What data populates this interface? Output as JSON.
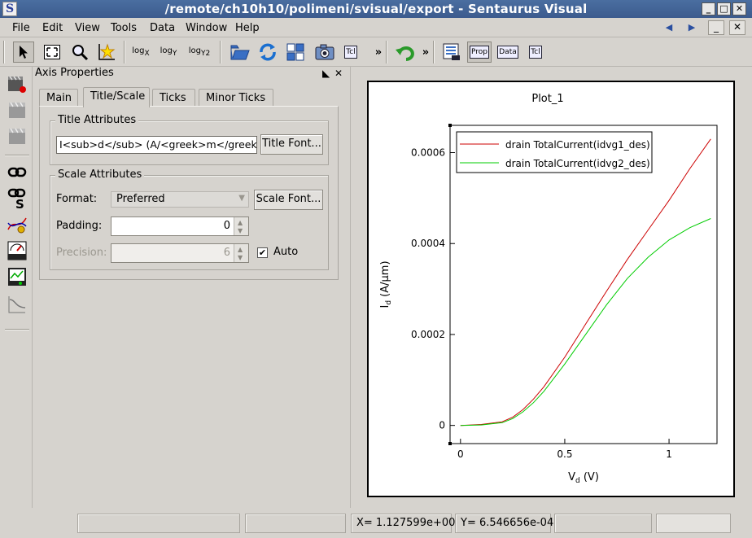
{
  "window": {
    "title": "/remote/ch10h10/polimeni/svisual/export - Sentaurus Visual",
    "app_icon": "S"
  },
  "menubar": {
    "items": [
      "File",
      "Edit",
      "View",
      "Tools",
      "Data",
      "Window",
      "Help"
    ]
  },
  "toolbar": {
    "log_x": "log",
    "log_x_sub": "X",
    "log_y": "log",
    "log_y_sub": "Y",
    "log_y2": "log",
    "log_y2_sub": "Y2",
    "tcl_label": "Tcl",
    "prop_label": "Prop",
    "data_label": "Data",
    "tcl2_label": "Tcl",
    "more": "»"
  },
  "axis_properties": {
    "title": "Axis Properties",
    "tabs": [
      "Main",
      "Title/Scale",
      "Ticks",
      "Minor Ticks"
    ],
    "active_tab": "Title/Scale",
    "title_attributes": {
      "heading": "Title Attributes",
      "title_value": "I<sub>d</sub> (A/<greek>m</greek>m)",
      "font_button": "Title Font..."
    },
    "scale_attributes": {
      "heading": "Scale Attributes",
      "format_label": "Format:",
      "format_value": "Preferred",
      "font_button": "Scale Font...",
      "padding_label": "Padding:",
      "padding_value": "0",
      "precision_label": "Precision:",
      "precision_value": "6",
      "auto_label": "Auto",
      "auto_checked": true
    }
  },
  "plot": {
    "title": "Plot_1"
  },
  "chart_data": {
    "type": "line",
    "title": "Plot_1",
    "xlabel": "V",
    "xlabel_sub": "d",
    "xlabel_unit": " (V)",
    "ylabel": "I",
    "ylabel_sub": "d",
    "ylabel_unit": " (A/μm)",
    "xlim": [
      -0.05,
      1.23
    ],
    "ylim": [
      -4e-05,
      0.00066
    ],
    "x_ticks": [
      0,
      0.5,
      1
    ],
    "x_tick_labels": [
      "0",
      "0.5",
      "1"
    ],
    "y_ticks": [
      0,
      0.0002,
      0.0004,
      0.0006
    ],
    "y_tick_labels": [
      "0",
      "0.0002",
      "0.0004",
      "0.0006"
    ],
    "legend_position": "top-left",
    "series": [
      {
        "name": "drain TotalCurrent(idvg1_des)",
        "color": "#cc0000",
        "x": [
          0,
          0.1,
          0.2,
          0.25,
          0.3,
          0.35,
          0.4,
          0.5,
          0.6,
          0.7,
          0.8,
          0.9,
          1.0,
          1.1,
          1.2
        ],
        "y": [
          0,
          2e-06,
          8e-06,
          1.8e-05,
          3.5e-05,
          5.8e-05,
          8.5e-05,
          0.00015,
          0.000223,
          0.000295,
          0.000365,
          0.00043,
          0.000495,
          0.000565,
          0.00063
        ]
      },
      {
        "name": "drain TotalCurrent(idvg2_des)",
        "color": "#00cc00",
        "x": [
          0,
          0.1,
          0.2,
          0.25,
          0.3,
          0.35,
          0.4,
          0.5,
          0.6,
          0.7,
          0.8,
          0.9,
          1.0,
          1.1,
          1.2
        ],
        "y": [
          0,
          1e-06,
          6e-06,
          1.5e-05,
          3e-05,
          5e-05,
          7.5e-05,
          0.000135,
          0.0002,
          0.000265,
          0.000323,
          0.00037,
          0.000408,
          0.000435,
          0.000455
        ]
      }
    ]
  },
  "statusbar": {
    "x_readout": "X= 1.127599e+00",
    "y_readout": "Y= 6.546656e-04"
  }
}
